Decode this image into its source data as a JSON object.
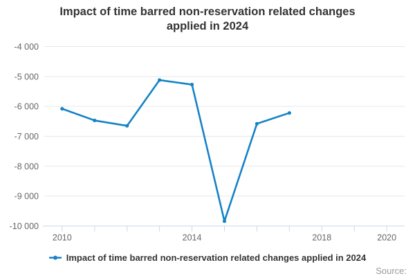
{
  "title": "Impact of time barred non-reservation related changes applied in 2024",
  "legend": {
    "label": "Impact of time barred non-reservation related changes applied in 2024",
    "marker_icon": "line-with-dot"
  },
  "source": {
    "label": "Source:"
  },
  "colors": {
    "line": "#1483c6",
    "grid": "#e6e6e6",
    "axis": "#ccd6eb",
    "axis_text": "#666666",
    "title_text": "#333333",
    "legend_text": "#333333",
    "source_text": "#999999"
  },
  "chart_data": {
    "type": "line",
    "title": "Impact of time barred non-reservation related changes applied in 2024",
    "xlabel": "",
    "ylabel": "",
    "x": [
      2010,
      2011,
      2012,
      2013,
      2014,
      2015,
      2016,
      2017
    ],
    "series": [
      {
        "name": "Impact of time barred non-reservation related changes applied in 2024",
        "color": "#1483c6",
        "values": [
          -6080,
          -6470,
          -6650,
          -5120,
          -5270,
          -9840,
          -6580,
          -6220
        ]
      }
    ],
    "xlim": [
      2009.45,
      2020.55
    ],
    "ylim": [
      -10000,
      -4000
    ],
    "x_ticks": [
      2010,
      2011,
      2012,
      2013,
      2014,
      2015,
      2016,
      2017,
      2018,
      2019,
      2020
    ],
    "x_tick_labels": [
      {
        "v": 2010,
        "label": "2010"
      },
      {
        "v": 2014,
        "label": "2014"
      },
      {
        "v": 2018,
        "label": "2018"
      },
      {
        "v": 2020,
        "label": "2020"
      }
    ],
    "y_ticks": [
      {
        "v": -4000,
        "label": "-4 000"
      },
      {
        "v": -5000,
        "label": "-5 000"
      },
      {
        "v": -6000,
        "label": "-6 000"
      },
      {
        "v": -7000,
        "label": "-7 000"
      },
      {
        "v": -8000,
        "label": "-8 000"
      },
      {
        "v": -9000,
        "label": "-9 000"
      },
      {
        "v": -10000,
        "label": "-10 000"
      }
    ],
    "grid": "horizontal",
    "legend_position": "bottom",
    "marker": "circle"
  }
}
